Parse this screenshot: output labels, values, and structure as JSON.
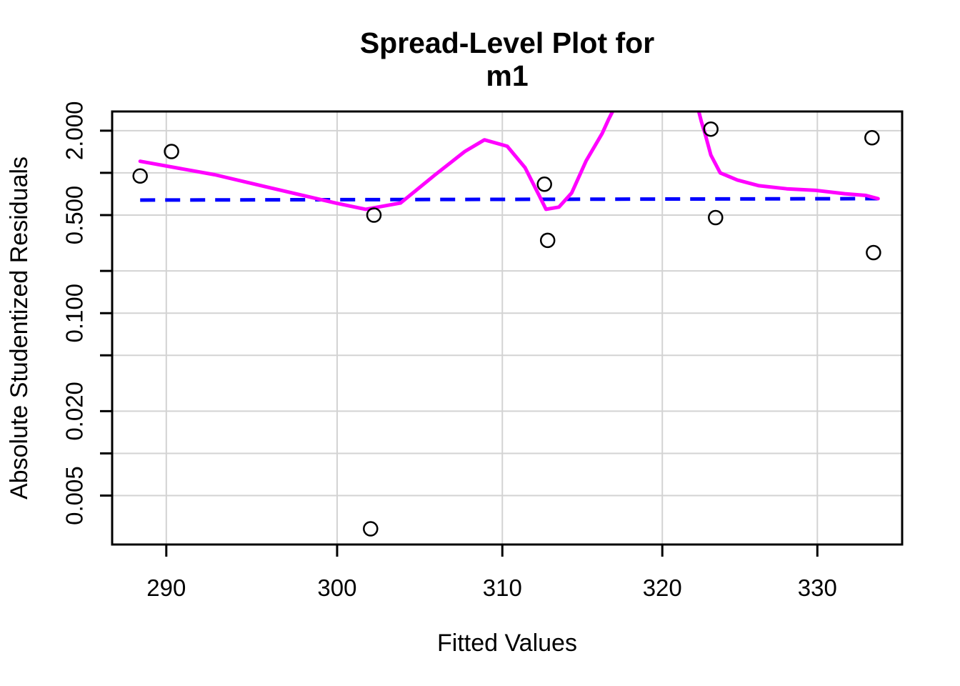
{
  "chart_data": {
    "type": "scatter",
    "title": "Spread-Level Plot for",
    "subtitle": "m1",
    "xlabel": "Fitted Values",
    "ylabel": "Absolute Studentized Residuals",
    "x_scale": "log",
    "y_scale": "log",
    "xlim": [
      286.9,
      335.6
    ],
    "ylim": [
      0.00224,
      2.74
    ],
    "grid": true,
    "x_ticks": [
      {
        "value": 290,
        "label": "290"
      },
      {
        "value": 300,
        "label": "300"
      },
      {
        "value": 310,
        "label": "310"
      },
      {
        "value": 320,
        "label": "320"
      },
      {
        "value": 330,
        "label": "330"
      }
    ],
    "y_ticks": [
      {
        "value": 2,
        "label": "2.000"
      },
      {
        "value": 1,
        "label": ""
      },
      {
        "value": 0.5,
        "label": "0.500"
      },
      {
        "value": 0.2,
        "label": ""
      },
      {
        "value": 0.1,
        "label": "0.100"
      },
      {
        "value": 0.05,
        "label": ""
      },
      {
        "value": 0.02,
        "label": "0.020"
      },
      {
        "value": 0.01,
        "label": ""
      },
      {
        "value": 0.005,
        "label": "0.005"
      }
    ],
    "points": [
      {
        "x": 288.5,
        "y": 0.95
      },
      {
        "x": 290.3,
        "y": 1.42
      },
      {
        "x": 302.0,
        "y": 0.0029
      },
      {
        "x": 302.2,
        "y": 0.5
      },
      {
        "x": 312.6,
        "y": 0.83
      },
      {
        "x": 312.8,
        "y": 0.33
      },
      {
        "x": 323.1,
        "y": 2.05
      },
      {
        "x": 323.4,
        "y": 0.48
      },
      {
        "x": 333.6,
        "y": 1.78
      },
      {
        "x": 333.7,
        "y": 0.27
      }
    ],
    "fit_line": {
      "name": "log-log regression line",
      "color": "#0000FF",
      "dashed": true,
      "x": [
        288.5,
        334.0
      ],
      "y": [
        0.64,
        0.655
      ]
    },
    "smooth": {
      "name": "nonparametric spread smooth",
      "color": "#FF00FF",
      "segments": [
        [
          [
            288.5,
            1.21
          ],
          [
            292.8,
            0.97
          ],
          [
            296.9,
            0.74
          ],
          [
            299.9,
            0.61
          ],
          [
            301.7,
            0.55
          ],
          [
            303.8,
            0.61
          ],
          [
            305.9,
            0.97
          ],
          [
            307.7,
            1.42
          ],
          [
            308.9,
            1.72
          ],
          [
            310.3,
            1.55
          ],
          [
            311.4,
            1.09
          ],
          [
            312.3,
            0.68
          ],
          [
            312.7,
            0.55
          ],
          [
            313.5,
            0.57
          ],
          [
            314.3,
            0.72
          ],
          [
            315.2,
            1.22
          ],
          [
            316.2,
            1.91
          ],
          [
            316.6,
            2.4
          ],
          [
            317.1,
            3.1
          ]
        ],
        [
          [
            322.2,
            3.1
          ],
          [
            322.5,
            2.3
          ],
          [
            322.7,
            1.95
          ],
          [
            323.1,
            1.34
          ],
          [
            323.7,
            1.0
          ],
          [
            324.8,
            0.89
          ],
          [
            326.2,
            0.81
          ],
          [
            328.0,
            0.77
          ],
          [
            329.9,
            0.75
          ],
          [
            331.8,
            0.71
          ],
          [
            333.2,
            0.69
          ],
          [
            334.0,
            0.655
          ]
        ]
      ]
    },
    "style": {
      "grid_color": "#D3D3D3",
      "point_color": "#000000",
      "point_radius": 9.5,
      "line_width": 5,
      "border_color": "#000000"
    }
  }
}
